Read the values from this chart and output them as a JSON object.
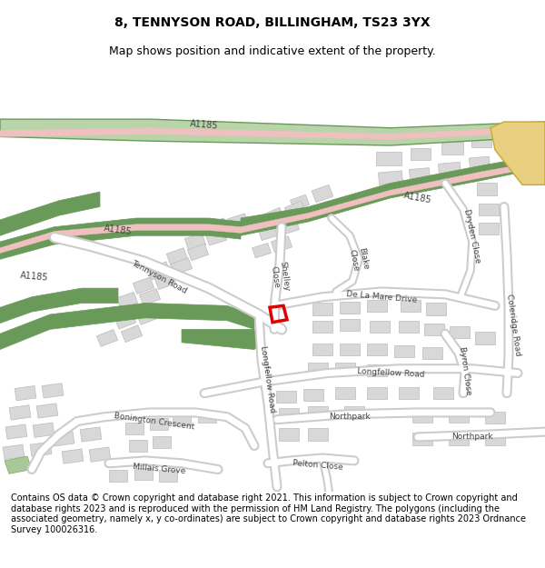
{
  "title": "8, TENNYSON ROAD, BILLINGHAM, TS23 3YX",
  "subtitle": "Map shows position and indicative extent of the property.",
  "footer": "Contains OS data © Crown copyright and database right 2021. This information is subject to Crown copyright and database rights 2023 and is reproduced with the permission of HM Land Registry. The polygons (including the associated geometry, namely x, y co-ordinates) are subject to Crown copyright and database rights 2023 Ordnance Survey 100026316.",
  "bg_color": "#ffffff",
  "map_bg": "#ffffff",
  "green_road_color": "#6a9a5a",
  "green_road_light": "#b8d4a8",
  "pink_road_color": "#f0c0c0",
  "yellow_road_color": "#e8d080",
  "yellow_road_border": "#c8a830",
  "building_color": "#d8d8d8",
  "building_border": "#bbbbbb",
  "road_white": "#ffffff",
  "road_gray_border": "#cccccc",
  "highlight_color": "#dd0000",
  "title_fontsize": 10,
  "subtitle_fontsize": 9,
  "footer_fontsize": 7,
  "label_fontsize": 6.5,
  "label_color": "#444444"
}
